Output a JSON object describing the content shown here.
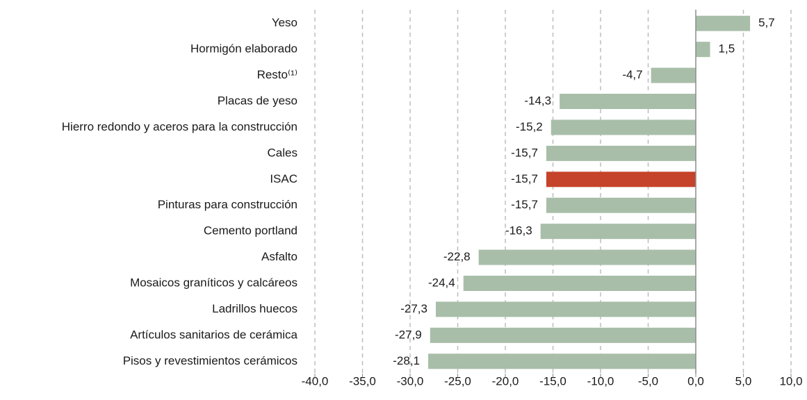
{
  "chart_data": {
    "type": "bar",
    "orientation": "horizontal",
    "categories": [
      "Yeso",
      "Hormigón elaborado",
      "Resto⁽¹⁾",
      "Placas de yeso",
      "Hierro redondo y aceros para la construcción",
      "Cales",
      "ISAC",
      "Pinturas para construcción",
      "Cemento portland",
      "Asfalto",
      "Mosaicos graníticos y calcáreos",
      "Ladrillos huecos",
      "Artículos sanitarios de cerámica",
      "Pisos y revestimientos cerámicos"
    ],
    "values": [
      5.7,
      1.5,
      -4.7,
      -14.3,
      -15.2,
      -15.7,
      -15.7,
      -15.7,
      -16.3,
      -22.8,
      -24.4,
      -27.3,
      -27.9,
      -28.1
    ],
    "value_labels": [
      "5,7",
      "1,5",
      "-4,7",
      "-14,3",
      "-15,2",
      "-15,7",
      "-15,7",
      "-15,7",
      "-16,3",
      "-22,8",
      "-24,4",
      "-27,3",
      "-27,9",
      "-28,1"
    ],
    "colors": [
      "#a9bea9",
      "#a9bea9",
      "#a9bea9",
      "#a9bea9",
      "#a9bea9",
      "#a9bea9",
      "#c5432a",
      "#a9bea9",
      "#a9bea9",
      "#a9bea9",
      "#a9bea9",
      "#a9bea9",
      "#a9bea9",
      "#a9bea9"
    ],
    "xlim": [
      -40,
      10
    ],
    "xticks": [
      {
        "value": -40,
        "label": "-40,0"
      },
      {
        "value": -35,
        "label": "-35,0"
      },
      {
        "value": -30,
        "label": "-30,0"
      },
      {
        "value": -25,
        "label": "-25,0"
      },
      {
        "value": -20,
        "label": "-20,0"
      },
      {
        "value": -15,
        "label": "-15,0"
      },
      {
        "value": -10,
        "label": "-10,0"
      },
      {
        "value": -5,
        "label": "-5,0"
      },
      {
        "value": 0,
        "label": "0,0"
      },
      {
        "value": 5,
        "label": "5,0"
      },
      {
        "value": 10,
        "label": "10,0"
      }
    ],
    "grid": true
  }
}
